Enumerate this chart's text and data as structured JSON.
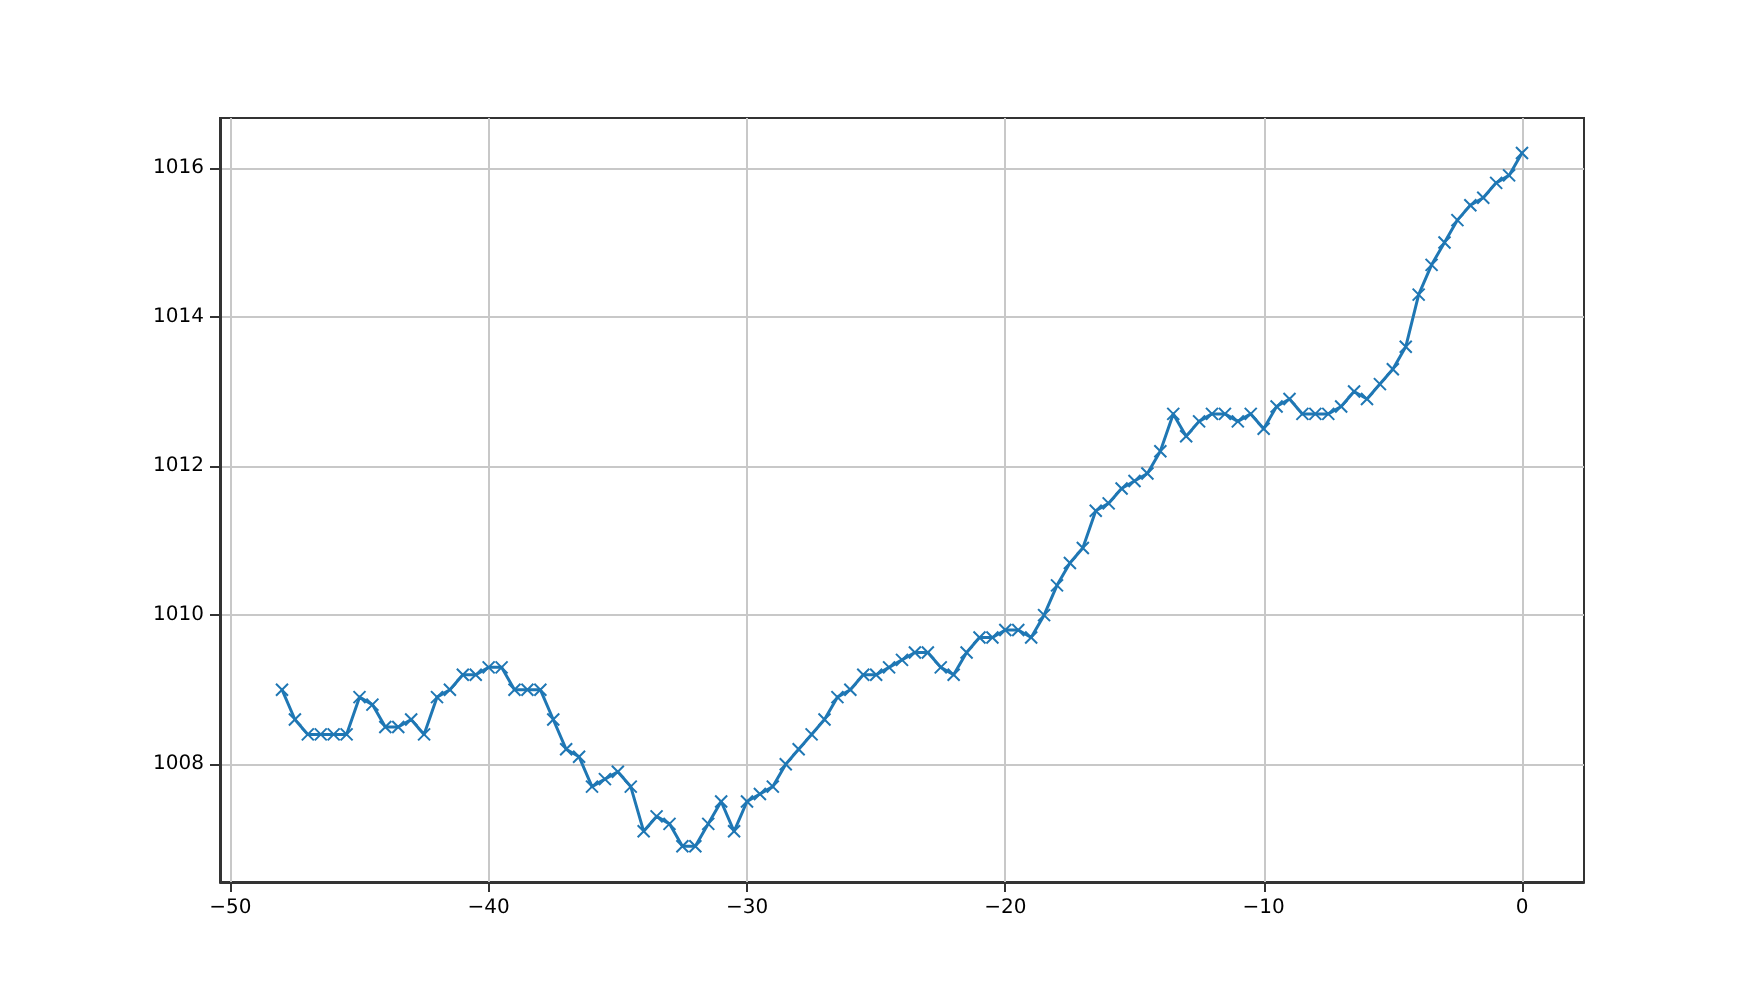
{
  "chart_data": {
    "type": "line",
    "marker": "cross",
    "grid": true,
    "x": [
      -48,
      -47.5,
      -47,
      -46.5,
      -46,
      -45.5,
      -45,
      -44.5,
      -44,
      -43.5,
      -43,
      -42.5,
      -42,
      -41.5,
      -41,
      -40.5,
      -40,
      -39.5,
      -39,
      -38.5,
      -38,
      -37.5,
      -37,
      -36.5,
      -36,
      -35.5,
      -35,
      -34.5,
      -34,
      -33.5,
      -33,
      -32.5,
      -32,
      -31.5,
      -31,
      -30.5,
      -30,
      -29.5,
      -29,
      -28.5,
      -28,
      -27.5,
      -27,
      -26.5,
      -26,
      -25.5,
      -25,
      -24.5,
      -24,
      -23.5,
      -23,
      -22.5,
      -22,
      -21.5,
      -21,
      -20.5,
      -20,
      -19.5,
      -19,
      -18.5,
      -18,
      -17.5,
      -17,
      -16.5,
      -16,
      -15.5,
      -15,
      -14.5,
      -14,
      -13.5,
      -13,
      -12.5,
      -12,
      -11.5,
      -11,
      -10.5,
      -10,
      -9.5,
      -9,
      -8.5,
      -8,
      -7.5,
      -7,
      -6.5,
      -6,
      -5.5,
      -5,
      -4.5,
      -4,
      -3.5,
      -3,
      -2.5,
      -2,
      -1.5,
      -1,
      -0.5,
      0
    ],
    "series": [
      {
        "color": "#1f77b4",
        "values": [
          1009.0,
          1008.6,
          1008.4,
          1008.4,
          1008.4,
          1008.4,
          1008.9,
          1008.8,
          1008.5,
          1008.5,
          1008.6,
          1008.4,
          1008.9,
          1009.0,
          1009.2,
          1009.2,
          1009.3,
          1009.3,
          1009.0,
          1009.0,
          1009.0,
          1008.6,
          1008.2,
          1008.1,
          1007.7,
          1007.8,
          1007.9,
          1007.7,
          1007.1,
          1007.3,
          1007.2,
          1006.9,
          1006.9,
          1007.2,
          1007.5,
          1007.1,
          1007.5,
          1007.6,
          1007.7,
          1008.0,
          1008.2,
          1008.4,
          1008.6,
          1008.9,
          1009.0,
          1009.2,
          1009.2,
          1009.3,
          1009.4,
          1009.5,
          1009.5,
          1009.3,
          1009.2,
          1009.5,
          1009.7,
          1009.7,
          1009.8,
          1009.8,
          1009.7,
          1010.0,
          1010.4,
          1010.7,
          1010.9,
          1011.4,
          1011.5,
          1011.7,
          1011.8,
          1011.9,
          1012.2,
          1012.7,
          1012.4,
          1012.6,
          1012.7,
          1012.7,
          1012.6,
          1012.7,
          1012.5,
          1012.8,
          1012.9,
          1012.7,
          1012.7,
          1012.7,
          1012.8,
          1013.0,
          1012.9,
          1013.1,
          1013.3,
          1013.6,
          1014.3,
          1014.7,
          1015.0,
          1015.3,
          1015.5,
          1015.6,
          1015.8,
          1015.9,
          1016.2
        ]
      }
    ],
    "xlim": [
      -50.4,
      2.4
    ],
    "xticks": [
      -50,
      -40,
      -30,
      -20,
      -10,
      0
    ],
    "ylim": [
      1006.42,
      1016.67
    ],
    "yticks": [
      1008,
      1010,
      1012,
      1014,
      1016
    ]
  }
}
